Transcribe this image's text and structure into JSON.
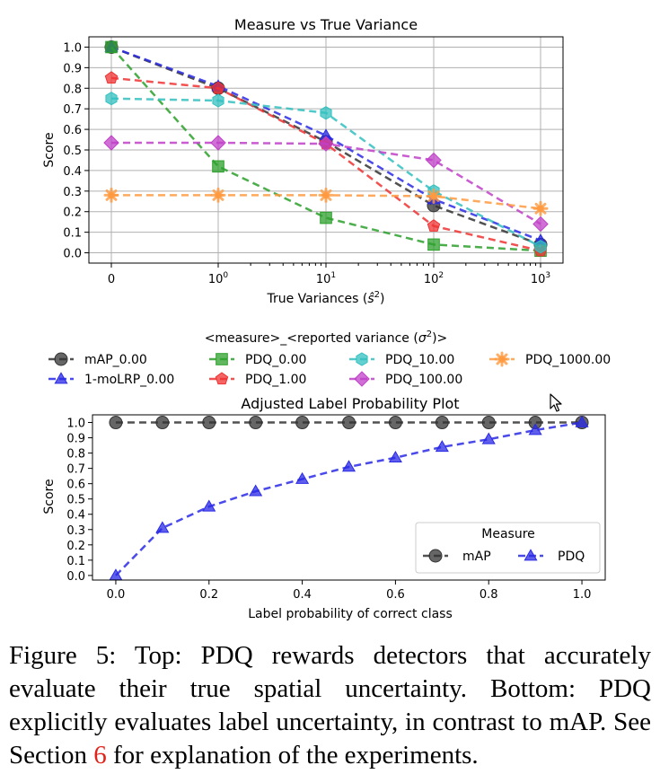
{
  "chart_data": [
    {
      "type": "line",
      "title": "Measure vs True Variance",
      "xlabel": "True Variances ($\\hat{s}^2$)",
      "xlabel_text": "True Variances (",
      "xlabel_suffix": ")",
      "ylabel": "Score",
      "x_tick_labels": [
        "0",
        "10",
        "10",
        "10",
        "10"
      ],
      "x_tick_exponents": [
        "",
        "0",
        "1",
        "2",
        "3"
      ],
      "x": [
        0,
        1,
        10,
        100,
        1000
      ],
      "y_ticks": [
        "0.0",
        "0.1",
        "0.2",
        "0.3",
        "0.4",
        "0.5",
        "0.6",
        "0.7",
        "0.8",
        "0.9",
        "1.0"
      ],
      "ylim": [
        -0.05,
        1.05
      ],
      "grid": true,
      "legend_title": "<measure>_<reported variance (σ²)>",
      "legend_title_text": "<measure>_<reported variance (",
      "legend_title_suffix": ")>",
      "legend_placement": "below",
      "series": [
        {
          "name": "mAP_0.00",
          "color": "#333333",
          "marker": "circle",
          "values": [
            1.0,
            0.8,
            0.54,
            0.23,
            0.04
          ]
        },
        {
          "name": "1-moLRP_0.00",
          "color": "#2a2ae6",
          "marker": "triangle",
          "values": [
            1.0,
            0.81,
            0.57,
            0.26,
            0.06
          ]
        },
        {
          "name": "PDQ_0.00",
          "color": "#2ca02c",
          "marker": "square",
          "values": [
            1.0,
            0.42,
            0.17,
            0.04,
            0.01
          ]
        },
        {
          "name": "PDQ_1.00",
          "color": "#f03232",
          "marker": "pentagon",
          "values": [
            0.85,
            0.8,
            0.53,
            0.13,
            0.01
          ]
        },
        {
          "name": "PDQ_10.00",
          "color": "#33c0c0",
          "marker": "hexagon",
          "values": [
            0.75,
            0.74,
            0.68,
            0.3,
            0.03
          ]
        },
        {
          "name": "PDQ_100.00",
          "color": "#c040c8",
          "marker": "diamond",
          "values": [
            0.535,
            0.535,
            0.53,
            0.45,
            0.14
          ]
        },
        {
          "name": "PDQ_1000.00",
          "color": "#ff9a40",
          "marker": "star",
          "values": [
            0.28,
            0.28,
            0.28,
            0.275,
            0.215
          ]
        }
      ]
    },
    {
      "type": "line",
      "title": "Adjusted Label Probability Plot",
      "xlabel": "Label probability of correct class",
      "ylabel": "Score",
      "x": [
        0.0,
        0.1,
        0.2,
        0.3,
        0.4,
        0.5,
        0.6,
        0.7,
        0.8,
        0.9,
        1.0
      ],
      "x_ticks": [
        "0.0",
        "0.2",
        "0.4",
        "0.6",
        "0.8",
        "1.0"
      ],
      "y_ticks": [
        "0.0",
        "0.1",
        "0.2",
        "0.3",
        "0.4",
        "0.5",
        "0.6",
        "0.7",
        "0.8",
        "0.9",
        "1.0"
      ],
      "xlim": [
        -0.05,
        1.05
      ],
      "ylim": [
        -0.03,
        1.05
      ],
      "grid": false,
      "legend_title": "Measure",
      "legend_placement": "lower-right",
      "series": [
        {
          "name": "mAP",
          "color": "#333333",
          "marker": "circle",
          "values": [
            1.0,
            1.0,
            1.0,
            1.0,
            1.0,
            1.0,
            1.0,
            1.0,
            1.0,
            1.0,
            1.0
          ]
        },
        {
          "name": "PDQ",
          "color": "#2a2ae6",
          "marker": "triangle",
          "values": [
            0.0,
            0.31,
            0.45,
            0.55,
            0.63,
            0.71,
            0.77,
            0.84,
            0.89,
            0.95,
            1.0
          ]
        }
      ]
    }
  ],
  "caption": {
    "text_before": "Figure 5: Top: PDQ rewards detectors that accurately evaluate their true spatial uncertainty. Bottom: PDQ explicitly evaluates label uncertainty, in contrast to mAP. See Section ",
    "ref": "6",
    "text_after": " for explanation of the experiments."
  }
}
